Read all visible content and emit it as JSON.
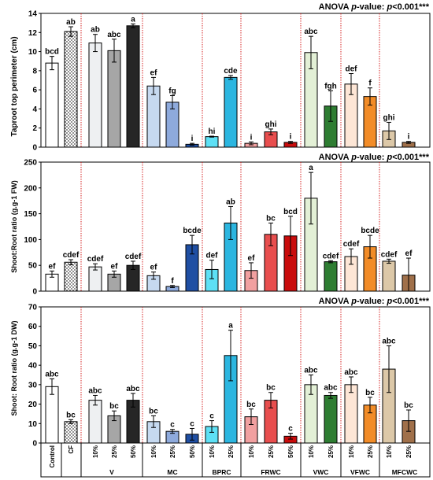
{
  "figure": {
    "anova_prefix": "ANOVA ",
    "anova_p": "p",
    "anova_suffix": "-value: ",
    "anova_p2": "p",
    "anova_value": "<0.001***"
  },
  "chart_data": [
    {
      "type": "bar",
      "ylabel": "Taproot top perimeter (cm)",
      "ylim": [
        0,
        14
      ],
      "yticks": [
        0,
        2,
        4,
        6,
        8,
        10,
        12,
        14
      ],
      "annotation": "ANOVA p-value: p<0.001***",
      "categories": [
        "Control",
        "CF",
        "V 10%",
        "V 25%",
        "V 50%",
        "MC 10%",
        "MC 25%",
        "MC 50%",
        "BPRC 10%",
        "BPRC 25%",
        "FRWC 10%",
        "FRWC 25%",
        "FRWC 50%",
        "VWC 10%",
        "VWC 25%",
        "VFWC 10%",
        "VFWC 25%",
        "MFCWC 10%",
        "MFCWC 25%"
      ],
      "values": [
        8.8,
        12.1,
        10.9,
        10.1,
        12.7,
        6.4,
        4.7,
        0.3,
        1.1,
        7.3,
        0.4,
        1.6,
        0.5,
        9.9,
        4.3,
        6.6,
        5.3,
        1.7,
        0.5
      ],
      "errors": [
        0.7,
        0.5,
        0.9,
        1.2,
        0.2,
        0.9,
        0.7,
        0.1,
        0.05,
        0.2,
        0.15,
        0.3,
        0.1,
        1.7,
        1.6,
        1.1,
        0.9,
        0.9,
        0.1
      ],
      "letters": [
        "bcd",
        "ab",
        "ab",
        "abc",
        "a",
        "ef",
        "fg",
        "i",
        "hi",
        "cde",
        "i",
        "ghi",
        "i",
        "abc",
        "fgh",
        "def",
        "f",
        "ghi",
        "i"
      ]
    },
    {
      "type": "bar",
      "ylabel": "Shoot:Root ratio (g.g-1 FW)",
      "ylim": [
        0,
        250
      ],
      "yticks": [
        0,
        50,
        100,
        150,
        200,
        250
      ],
      "annotation": "ANOVA p-value: p<0.001***",
      "categories": [
        "Control",
        "CF",
        "V 10%",
        "V 25%",
        "V 50%",
        "MC 10%",
        "MC 25%",
        "MC 50%",
        "BPRC 10%",
        "BPRC 25%",
        "FRWC 10%",
        "FRWC 25%",
        "FRWC 50%",
        "VWC 10%",
        "VWC 25%",
        "VFWC 10%",
        "VFWC 25%",
        "MFCWC 10%",
        "MFCWC 25%"
      ],
      "values": [
        33,
        56,
        47,
        33,
        50,
        30,
        9,
        90,
        42,
        132,
        40,
        110,
        107,
        180,
        57,
        67,
        86,
        58,
        31
      ],
      "errors": [
        6,
        5,
        6,
        6,
        8,
        7,
        2,
        18,
        18,
        32,
        15,
        22,
        38,
        50,
        2,
        15,
        22,
        4,
        33
      ],
      "letters": [
        "ef",
        "cdef",
        "cdef",
        "ef",
        "cdef",
        "ef",
        "f",
        "bcde",
        "def",
        "ab",
        "ef",
        "bc",
        "bcd",
        "a",
        "cdef",
        "cdef",
        "bcde",
        "cdef",
        "ef"
      ]
    },
    {
      "type": "bar",
      "ylabel": "Shoot: Root ratio (g.g-1 DW)",
      "ylim": [
        0,
        70
      ],
      "yticks": [
        0,
        10,
        20,
        30,
        40,
        50,
        60,
        70
      ],
      "annotation": "ANOVA p-value: p<0.001***",
      "categories": [
        "Control",
        "CF",
        "V 10%",
        "V 25%",
        "V 50%",
        "MC 10%",
        "MC 25%",
        "MC 50%",
        "BPRC 10%",
        "BPRC 25%",
        "FRWC 10%",
        "FRWC 25%",
        "FRWC 50%",
        "VWC 10%",
        "VWC 25%",
        "VFWC 10%",
        "VFWC 25%",
        "MFCWC 10%",
        "MFCWC 25%"
      ],
      "values": [
        29,
        11,
        22,
        14,
        22,
        11,
        6,
        4.5,
        8.5,
        45,
        13.5,
        22,
        3.5,
        30,
        24.5,
        30,
        19.5,
        38,
        11.5
      ],
      "errors": [
        4,
        1,
        2.5,
        2.5,
        3.5,
        3,
        1,
        3,
        3,
        13,
        4,
        4,
        1.5,
        5,
        1.5,
        4,
        4,
        12,
        5.5
      ],
      "letters": [
        "abc",
        "bc",
        "abc",
        "bc",
        "abc",
        "bc",
        "c",
        "c",
        "c",
        "a",
        "bc",
        "bc",
        "c",
        "abc",
        "abc",
        "abc",
        "bc",
        "abc",
        "bc"
      ]
    }
  ],
  "x_axis": {
    "single_labels": [
      "Control",
      "CF"
    ],
    "group_names": [
      "V",
      "MC",
      "BPRC",
      "FRWC",
      "VWC",
      "VFWC",
      "MFCWC"
    ],
    "sub_labels": [
      [
        "10%",
        "25%",
        "50%"
      ],
      [
        "10%",
        "25%",
        "50%"
      ],
      [
        "10%",
        "25%"
      ],
      [
        "10%",
        "25%",
        "50%"
      ],
      [
        "10%",
        "25%"
      ],
      [
        "10%",
        "25%"
      ],
      [
        "10%",
        "25%"
      ]
    ]
  },
  "colors": {
    "bars": [
      "#ffffff",
      "#ffffff",
      "#eef0f2",
      "#a6a6a6",
      "#262626",
      "#c6d9f0",
      "#8eaadc",
      "#1f4fa3",
      "#5ee0f5",
      "#2bb6e0",
      "#f1a0a0",
      "#e84e4e",
      "#c90c0c",
      "#e3f0d6",
      "#2e7d32",
      "#fde6d6",
      "#f28c28",
      "#dcc8a8",
      "#a0704a"
    ],
    "divider": "#d62020",
    "axis": "#000000"
  }
}
